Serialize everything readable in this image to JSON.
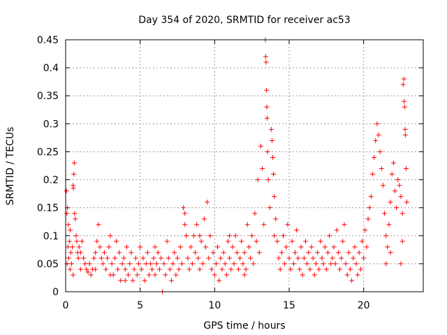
{
  "chart_data": {
    "type": "scatter",
    "title": "Day 354 of 2020, SRMTID for receiver ac53",
    "xlabel": "GPS time / hours",
    "ylabel": "SRMTID / TECUs",
    "xlim": [
      0,
      24
    ],
    "ylim": [
      0,
      0.45
    ],
    "xticks": [
      0,
      5,
      10,
      15,
      20
    ],
    "yticks": [
      0,
      0.05,
      0.1,
      0.15,
      0.2,
      0.25,
      0.3,
      0.35,
      0.4,
      0.45
    ],
    "xtick_labels": [
      "0",
      "5",
      "10",
      "15",
      "20"
    ],
    "ytick_labels": [
      "0",
      "0.05",
      "0.1",
      "0.15",
      "0.2",
      "0.25",
      "0.3",
      "0.35",
      "0.4",
      "0.45"
    ],
    "grid": true,
    "marker": "+",
    "color": "#ff0000",
    "series": [
      {
        "name": "SRMTID",
        "points": [
          [
            0.05,
            0.18
          ],
          [
            0.08,
            0.14
          ],
          [
            0.1,
            0.05
          ],
          [
            0.12,
            0.15
          ],
          [
            0.15,
            0.08
          ],
          [
            0.18,
            0.12
          ],
          [
            0.2,
            0.06
          ],
          [
            0.25,
            0.09
          ],
          [
            0.3,
            0.11
          ],
          [
            0.35,
            0.07
          ],
          [
            0.4,
            0.05
          ],
          [
            0.45,
            0.08
          ],
          [
            0.5,
            0.19
          ],
          [
            0.52,
            0.185
          ],
          [
            0.55,
            0.21
          ],
          [
            0.58,
            0.23
          ],
          [
            0.6,
            0.14
          ],
          [
            0.65,
            0.13
          ],
          [
            0.7,
            0.1
          ],
          [
            0.75,
            0.09
          ],
          [
            0.8,
            0.07
          ],
          [
            0.85,
            0.06
          ],
          [
            0.9,
            0.08
          ],
          [
            1.0,
            0.07
          ],
          [
            1.1,
            0.09
          ],
          [
            1.2,
            0.06
          ],
          [
            1.3,
            0.05
          ],
          [
            1.4,
            0.04
          ],
          [
            1.5,
            0.035
          ],
          [
            1.6,
            0.05
          ],
          [
            1.7,
            0.03
          ],
          [
            1.8,
            0.04
          ],
          [
            1.9,
            0.06
          ],
          [
            2.0,
            0.07
          ],
          [
            2.1,
            0.09
          ],
          [
            2.2,
            0.12
          ],
          [
            2.3,
            0.08
          ],
          [
            2.4,
            0.06
          ],
          [
            2.5,
            0.05
          ],
          [
            2.6,
            0.07
          ],
          [
            2.7,
            0.04
          ],
          [
            2.8,
            0.06
          ],
          [
            2.9,
            0.08
          ],
          [
            3.0,
            0.1
          ],
          [
            3.1,
            0.05
          ],
          [
            3.2,
            0.03
          ],
          [
            3.3,
            0.06
          ],
          [
            3.4,
            0.09
          ],
          [
            3.5,
            0.04
          ],
          [
            3.6,
            0.07
          ],
          [
            3.7,
            0.02
          ],
          [
            3.8,
            0.05
          ],
          [
            3.9,
            0.06
          ],
          [
            4.0,
            0.04
          ],
          [
            4.1,
            0.08
          ],
          [
            4.2,
            0.03
          ],
          [
            4.3,
            0.05
          ],
          [
            4.4,
            0.07
          ],
          [
            4.5,
            0.02
          ],
          [
            4.6,
            0.04
          ],
          [
            4.7,
            0.06
          ],
          [
            4.8,
            0.03
          ],
          [
            4.9,
            0.05
          ],
          [
            5.0,
            0.08
          ],
          [
            5.1,
            0.04
          ],
          [
            5.2,
            0.06
          ],
          [
            5.3,
            0.02
          ],
          [
            5.4,
            0.05
          ],
          [
            5.5,
            0.07
          ],
          [
            5.6,
            0.03
          ],
          [
            5.7,
            0.05
          ],
          [
            5.8,
            0.04
          ],
          [
            5.9,
            0.06
          ],
          [
            6.0,
            0.03
          ],
          [
            6.1,
            0.05
          ],
          [
            6.2,
            0.07
          ],
          [
            6.3,
            0.04
          ],
          [
            6.4,
            0.06
          ],
          [
            6.5,
            0.0
          ],
          [
            6.6,
            0.05
          ],
          [
            6.7,
            0.03
          ],
          [
            6.8,
            0.09
          ],
          [
            6.9,
            0.06
          ],
          [
            7.0,
            0.04
          ],
          [
            7.1,
            0.02
          ],
          [
            7.2,
            0.05
          ],
          [
            7.3,
            0.07
          ],
          [
            7.4,
            0.03
          ],
          [
            7.5,
            0.06
          ],
          [
            7.6,
            0.04
          ],
          [
            7.7,
            0.08
          ],
          [
            7.8,
            0.05
          ],
          [
            7.9,
            0.15
          ],
          [
            8.0,
            0.14
          ],
          [
            8.1,
            0.1
          ],
          [
            8.2,
            0.06
          ],
          [
            8.3,
            0.04
          ],
          [
            8.4,
            0.08
          ],
          [
            8.5,
            0.05
          ],
          [
            8.6,
            0.1
          ],
          [
            8.7,
            0.07
          ],
          [
            8.8,
            0.12
          ],
          [
            8.9,
            0.06
          ],
          [
            9.0,
            0.04
          ],
          [
            9.1,
            0.09
          ],
          [
            9.2,
            0.05
          ],
          [
            9.3,
            0.13
          ],
          [
            9.4,
            0.08
          ],
          [
            9.5,
            0.16
          ],
          [
            9.6,
            0.06
          ],
          [
            9.7,
            0.1
          ],
          [
            9.8,
            0.04
          ],
          [
            9.9,
            0.07
          ],
          [
            10.0,
            0.03
          ],
          [
            10.1,
            0.05
          ],
          [
            10.2,
            0.08
          ],
          [
            10.3,
            0.02
          ],
          [
            10.4,
            0.06
          ],
          [
            10.5,
            0.04
          ],
          [
            10.6,
            0.07
          ],
          [
            10.7,
            0.05
          ],
          [
            10.8,
            0.03
          ],
          [
            10.9,
            0.09
          ],
          [
            11.0,
            0.06
          ],
          [
            11.1,
            0.04
          ],
          [
            11.2,
            0.08
          ],
          [
            11.3,
            0.05
          ],
          [
            11.4,
            0.1
          ],
          [
            11.5,
            0.07
          ],
          [
            11.6,
            0.04
          ],
          [
            11.7,
            0.06
          ],
          [
            11.8,
            0.09
          ],
          [
            11.9,
            0.05
          ],
          [
            12.0,
            0.07
          ],
          [
            12.1,
            0.04
          ],
          [
            12.2,
            0.12
          ],
          [
            12.3,
            0.08
          ],
          [
            12.4,
            0.06
          ],
          [
            12.5,
            0.1
          ],
          [
            12.6,
            0.05
          ],
          [
            12.7,
            0.14
          ],
          [
            12.8,
            0.09
          ],
          [
            12.9,
            0.2
          ],
          [
            13.0,
            0.07
          ],
          [
            13.1,
            0.26
          ],
          [
            13.2,
            0.22
          ],
          [
            13.3,
            0.12
          ],
          [
            13.4,
            0.45
          ],
          [
            13.42,
            0.42
          ],
          [
            13.45,
            0.41
          ],
          [
            13.48,
            0.36
          ],
          [
            13.5,
            0.33
          ],
          [
            13.52,
            0.31
          ],
          [
            13.55,
            0.25
          ],
          [
            13.6,
            0.2
          ],
          [
            13.7,
            0.15
          ],
          [
            13.8,
            0.29
          ],
          [
            13.85,
            0.27
          ],
          [
            13.9,
            0.24
          ],
          [
            13.95,
            0.21
          ],
          [
            14.0,
            0.17
          ],
          [
            14.1,
            0.13
          ],
          [
            14.2,
            0.09
          ],
          [
            14.3,
            0.06
          ],
          [
            14.4,
            0.04
          ],
          [
            14.5,
            0.07
          ],
          [
            14.6,
            0.1
          ],
          [
            14.7,
            0.05
          ],
          [
            14.8,
            0.08
          ],
          [
            14.9,
            0.12
          ],
          [
            15.0,
            0.06
          ],
          [
            15.1,
            0.04
          ],
          [
            15.2,
            0.09
          ],
          [
            15.3,
            0.05
          ],
          [
            15.4,
            0.07
          ],
          [
            15.5,
            0.11
          ],
          [
            15.6,
            0.06
          ],
          [
            15.7,
            0.04
          ],
          [
            15.8,
            0.08
          ],
          [
            15.9,
            0.03
          ],
          [
            16.0,
            0.06
          ],
          [
            16.1,
            0.09
          ],
          [
            16.2,
            0.05
          ],
          [
            16.3,
            0.07
          ],
          [
            16.4,
            0.04
          ],
          [
            16.5,
            0.08
          ],
          [
            16.6,
            0.06
          ],
          [
            16.7,
            0.03
          ],
          [
            16.8,
            0.05
          ],
          [
            16.9,
            0.07
          ],
          [
            17.0,
            0.04
          ],
          [
            17.1,
            0.09
          ],
          [
            17.2,
            0.06
          ],
          [
            17.3,
            0.05
          ],
          [
            17.4,
            0.08
          ],
          [
            17.5,
            0.04
          ],
          [
            17.6,
            0.07
          ],
          [
            17.7,
            0.1
          ],
          [
            17.8,
            0.05
          ],
          [
            17.9,
            0.06
          ],
          [
            18.0,
            0.08
          ],
          [
            18.1,
            0.05
          ],
          [
            18.2,
            0.11
          ],
          [
            18.3,
            0.07
          ],
          [
            18.4,
            0.04
          ],
          [
            18.5,
            0.06
          ],
          [
            18.6,
            0.09
          ],
          [
            18.7,
            0.12
          ],
          [
            18.8,
            0.05
          ],
          [
            18.9,
            0.03
          ],
          [
            19.0,
            0.07
          ],
          [
            19.1,
            0.04
          ],
          [
            19.2,
            0.02
          ],
          [
            19.3,
            0.06
          ],
          [
            19.4,
            0.08
          ],
          [
            19.5,
            0.05
          ],
          [
            19.6,
            0.03
          ],
          [
            19.7,
            0.07
          ],
          [
            19.8,
            0.04
          ],
          [
            19.9,
            0.09
          ],
          [
            20.0,
            0.06
          ],
          [
            20.1,
            0.11
          ],
          [
            20.2,
            0.08
          ],
          [
            20.3,
            0.13
          ],
          [
            20.4,
            0.15
          ],
          [
            20.5,
            0.17
          ],
          [
            20.6,
            0.21
          ],
          [
            20.7,
            0.24
          ],
          [
            20.8,
            0.27
          ],
          [
            20.9,
            0.3
          ],
          [
            21.0,
            0.28
          ],
          [
            21.1,
            0.25
          ],
          [
            21.2,
            0.22
          ],
          [
            21.3,
            0.19
          ],
          [
            21.4,
            0.14
          ],
          [
            21.5,
            0.1
          ],
          [
            21.6,
            0.08
          ],
          [
            21.7,
            0.12
          ],
          [
            21.8,
            0.16
          ],
          [
            21.9,
            0.21
          ],
          [
            22.0,
            0.23
          ],
          [
            22.1,
            0.18
          ],
          [
            22.2,
            0.15
          ],
          [
            22.3,
            0.2
          ],
          [
            22.4,
            0.19
          ],
          [
            22.5,
            0.17
          ],
          [
            22.6,
            0.14
          ],
          [
            22.65,
            0.37
          ],
          [
            22.7,
            0.38
          ],
          [
            22.72,
            0.34
          ],
          [
            22.75,
            0.33
          ],
          [
            22.78,
            0.29
          ],
          [
            22.8,
            0.28
          ],
          [
            22.85,
            0.22
          ],
          [
            22.9,
            0.16
          ],
          [
            22.6,
            0.09
          ],
          [
            22.5,
            0.05
          ],
          [
            21.5,
            0.05
          ],
          [
            21.8,
            0.07
          ],
          [
            14.0,
            0.1
          ],
          [
            12.0,
            0.03
          ],
          [
            11.0,
            0.1
          ],
          [
            9.0,
            0.1
          ],
          [
            8.0,
            0.12
          ],
          [
            6.0,
            0.08
          ],
          [
            4.0,
            0.02
          ],
          [
            3.0,
            0.03
          ],
          [
            2.0,
            0.04
          ],
          [
            1.0,
            0.04
          ],
          [
            0.5,
            0.03
          ],
          [
            0.3,
            0.04
          ]
        ]
      }
    ]
  }
}
